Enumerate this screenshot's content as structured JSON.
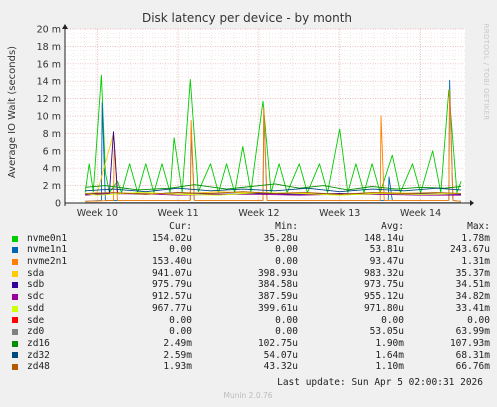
{
  "chart_data": {
    "type": "line",
    "title": "Disk latency per device - by month",
    "ylabel": "Average IO Wait (seconds)",
    "ylim": [
      0,
      0.02
    ],
    "yticks": [
      {
        "value": 0,
        "label": "0"
      },
      {
        "value": 0.002,
        "label": "2 m"
      },
      {
        "value": 0.004,
        "label": "4 m"
      },
      {
        "value": 0.006,
        "label": "6 m"
      },
      {
        "value": 0.008,
        "label": "8 m"
      },
      {
        "value": 0.01,
        "label": "10 m"
      },
      {
        "value": 0.012,
        "label": "12 m"
      },
      {
        "value": 0.014,
        "label": "14 m"
      },
      {
        "value": 0.016,
        "label": "16 m"
      },
      {
        "value": 0.018,
        "label": "18 m"
      },
      {
        "value": 0.02,
        "label": "20 m"
      }
    ],
    "xlim": [
      9.6,
      14.55
    ],
    "xticks": [
      {
        "value": 10,
        "label": "Week 10"
      },
      {
        "value": 11,
        "label": "Week 11"
      },
      {
        "value": 12,
        "label": "Week 12"
      },
      {
        "value": 13,
        "label": "Week 13"
      },
      {
        "value": 14,
        "label": "Week 14"
      }
    ],
    "grid": true,
    "series": [
      {
        "name": "nvme0n1",
        "color": "#00cc00",
        "points": [
          [
            9.85,
            0.0012
          ],
          [
            9.9,
            0.0045
          ],
          [
            9.95,
            0.0013
          ],
          [
            10.05,
            0.0147
          ],
          [
            10.1,
            0.0035
          ],
          [
            10.15,
            0.0012
          ],
          [
            10.25,
            0.0025
          ],
          [
            10.3,
            0.0012
          ],
          [
            10.4,
            0.0045
          ],
          [
            10.5,
            0.0012
          ],
          [
            10.6,
            0.0045
          ],
          [
            10.7,
            0.0012
          ],
          [
            10.8,
            0.0045
          ],
          [
            10.9,
            0.0012
          ],
          [
            10.95,
            0.0075
          ],
          [
            11.05,
            0.0012
          ],
          [
            11.15,
            0.0142
          ],
          [
            11.25,
            0.0013
          ],
          [
            11.4,
            0.0045
          ],
          [
            11.5,
            0.0012
          ],
          [
            11.6,
            0.0045
          ],
          [
            11.7,
            0.0012
          ],
          [
            11.8,
            0.0065
          ],
          [
            11.9,
            0.0013
          ],
          [
            12.05,
            0.0117
          ],
          [
            12.15,
            0.0012
          ],
          [
            12.25,
            0.0045
          ],
          [
            12.35,
            0.0012
          ],
          [
            12.5,
            0.0045
          ],
          [
            12.6,
            0.0012
          ],
          [
            12.75,
            0.0045
          ],
          [
            12.85,
            0.0012
          ],
          [
            13.0,
            0.0085
          ],
          [
            13.1,
            0.0012
          ],
          [
            13.2,
            0.0045
          ],
          [
            13.3,
            0.0012
          ],
          [
            13.4,
            0.0045
          ],
          [
            13.5,
            0.0012
          ],
          [
            13.65,
            0.0055
          ],
          [
            13.75,
            0.0012
          ],
          [
            13.9,
            0.0045
          ],
          [
            14.0,
            0.0012
          ],
          [
            14.15,
            0.006
          ],
          [
            14.25,
            0.0012
          ],
          [
            14.35,
            0.013
          ],
          [
            14.45,
            0.0012
          ],
          [
            14.5,
            0.0025
          ]
        ]
      },
      {
        "name": "nvme1n1",
        "color": "#0066b3",
        "points": [
          [
            9.85,
            0.0002
          ],
          [
            10.05,
            0.0003
          ],
          [
            10.06,
            0.0115
          ],
          [
            10.1,
            0.0003
          ],
          [
            11.15,
            0.0003
          ],
          [
            11.16,
            0.0085
          ],
          [
            11.2,
            0.0003
          ],
          [
            12.05,
            0.0003
          ],
          [
            12.06,
            0.0105
          ],
          [
            12.1,
            0.0003
          ],
          [
            13.6,
            0.0003
          ],
          [
            13.61,
            0.003
          ],
          [
            13.65,
            0.0003
          ],
          [
            14.35,
            0.0003
          ],
          [
            14.36,
            0.0141
          ],
          [
            14.4,
            0.0003
          ],
          [
            14.5,
            0.0002
          ]
        ]
      },
      {
        "name": "nvme2n1",
        "color": "#ff8000",
        "points": [
          [
            9.85,
            0.0002
          ],
          [
            10.2,
            0.0003
          ],
          [
            10.21,
            0.007
          ],
          [
            10.25,
            0.0003
          ],
          [
            11.15,
            0.0003
          ],
          [
            11.16,
            0.0095
          ],
          [
            11.2,
            0.0003
          ],
          [
            12.05,
            0.0003
          ],
          [
            12.06,
            0.011
          ],
          [
            12.1,
            0.0003
          ],
          [
            13.5,
            0.0003
          ],
          [
            13.51,
            0.01
          ],
          [
            13.55,
            0.0003
          ],
          [
            14.35,
            0.0003
          ],
          [
            14.36,
            0.013
          ],
          [
            14.4,
            0.0003
          ],
          [
            14.5,
            0.0002
          ]
        ]
      },
      {
        "name": "sda",
        "color": "#ffcc00",
        "points": [
          [
            9.85,
            0.001
          ],
          [
            10.0,
            0.0012
          ],
          [
            10.2,
            0.008
          ],
          [
            10.25,
            0.0011
          ],
          [
            10.6,
            0.0012
          ],
          [
            11.0,
            0.001
          ],
          [
            11.5,
            0.0013
          ],
          [
            12.0,
            0.0011
          ],
          [
            12.5,
            0.0012
          ],
          [
            13.0,
            0.0009
          ],
          [
            13.5,
            0.0012
          ],
          [
            14.0,
            0.0011
          ],
          [
            14.5,
            0.001
          ]
        ]
      },
      {
        "name": "sdb",
        "color": "#330099",
        "points": [
          [
            9.85,
            0.001
          ],
          [
            10.15,
            0.0011
          ],
          [
            10.2,
            0.0082
          ],
          [
            10.25,
            0.0011
          ],
          [
            10.6,
            0.001
          ],
          [
            11.0,
            0.0012
          ],
          [
            11.5,
            0.001
          ],
          [
            12.0,
            0.0011
          ],
          [
            12.5,
            0.001
          ],
          [
            13.0,
            0.0011
          ],
          [
            13.5,
            0.001
          ],
          [
            14.0,
            0.0011
          ],
          [
            14.5,
            0.001
          ]
        ]
      },
      {
        "name": "sdc",
        "color": "#990099",
        "points": [
          [
            9.85,
            0.0009
          ],
          [
            10.0,
            0.001
          ],
          [
            10.5,
            0.0011
          ],
          [
            11.0,
            0.0009
          ],
          [
            11.5,
            0.001
          ],
          [
            12.0,
            0.001
          ],
          [
            12.5,
            0.0009
          ],
          [
            13.0,
            0.001
          ],
          [
            13.5,
            0.001
          ],
          [
            14.0,
            0.0009
          ],
          [
            14.5,
            0.0009
          ]
        ]
      },
      {
        "name": "sdd",
        "color": "#ccff00",
        "points": [
          [
            9.85,
            0.0011
          ],
          [
            10.0,
            0.0009
          ],
          [
            10.5,
            0.0012
          ],
          [
            11.0,
            0.001
          ],
          [
            11.5,
            0.0009
          ],
          [
            12.0,
            0.0012
          ],
          [
            12.5,
            0.0011
          ],
          [
            13.0,
            0.0009
          ],
          [
            13.5,
            0.0011
          ],
          [
            14.0,
            0.001
          ],
          [
            14.5,
            0.0011
          ]
        ]
      },
      {
        "name": "sde",
        "color": "#ff0000",
        "points": [
          [
            9.85,
            0
          ],
          [
            14.5,
            0
          ]
        ]
      },
      {
        "name": "zd0",
        "color": "#808080",
        "points": [
          [
            9.85,
            5e-05
          ],
          [
            12.0,
            6e-05
          ],
          [
            14.5,
            5e-05
          ]
        ]
      },
      {
        "name": "zd16",
        "color": "#008f00",
        "points": [
          [
            9.85,
            0.0018
          ],
          [
            10.1,
            0.002
          ],
          [
            10.5,
            0.0015
          ],
          [
            10.9,
            0.0017
          ],
          [
            11.2,
            0.0021
          ],
          [
            11.6,
            0.0016
          ],
          [
            11.9,
            0.0019
          ],
          [
            12.2,
            0.0022
          ],
          [
            12.5,
            0.0017
          ],
          [
            12.8,
            0.002
          ],
          [
            13.1,
            0.0015
          ],
          [
            13.4,
            0.0019
          ],
          [
            13.7,
            0.0016
          ],
          [
            14.0,
            0.0018
          ],
          [
            14.3,
            0.0017
          ],
          [
            14.5,
            0.0019
          ]
        ]
      },
      {
        "name": "zd32",
        "color": "#00487d",
        "points": [
          [
            9.85,
            0.0014
          ],
          [
            10.2,
            0.0016
          ],
          [
            10.6,
            0.0013
          ],
          [
            11.0,
            0.0017
          ],
          [
            11.4,
            0.0014
          ],
          [
            11.8,
            0.0016
          ],
          [
            12.2,
            0.0014
          ],
          [
            12.6,
            0.0017
          ],
          [
            13.0,
            0.0013
          ],
          [
            13.4,
            0.0016
          ],
          [
            13.8,
            0.0014
          ],
          [
            14.2,
            0.0017
          ],
          [
            14.5,
            0.0015
          ]
        ]
      },
      {
        "name": "zd48",
        "color": "#b35a00",
        "points": [
          [
            9.85,
            0.0011
          ],
          [
            10.2,
            0.0012
          ],
          [
            10.6,
            0.001
          ],
          [
            11.0,
            0.0012
          ],
          [
            11.4,
            0.0011
          ],
          [
            11.8,
            0.0013
          ],
          [
            12.2,
            0.0011
          ],
          [
            12.6,
            0.0012
          ],
          [
            13.0,
            0.001
          ],
          [
            13.4,
            0.0012
          ],
          [
            13.8,
            0.0011
          ],
          [
            14.2,
            0.0012
          ],
          [
            14.5,
            0.0011
          ]
        ]
      }
    ]
  },
  "side_text": "RRDTOOL / TOBI OETIKER",
  "legend": {
    "headers": {
      "cur": "Cur:",
      "min": "Min:",
      "avg": "Avg:",
      "max": "Max:"
    },
    "rows": [
      {
        "name": "nvme0n1",
        "color": "#00cc00",
        "cur": "154.02u",
        "min": "35.28u",
        "avg": "148.14u",
        "max": "1.78m"
      },
      {
        "name": "nvme1n1",
        "color": "#0066b3",
        "cur": "0.00",
        "min": "0.00",
        "avg": "53.81u",
        "max": "243.67u"
      },
      {
        "name": "nvme2n1",
        "color": "#ff8000",
        "cur": "153.40u",
        "min": "0.00",
        "avg": "93.47u",
        "max": "1.31m"
      },
      {
        "name": "sda",
        "color": "#ffcc00",
        "cur": "941.07u",
        "min": "398.93u",
        "avg": "983.32u",
        "max": "35.37m"
      },
      {
        "name": "sdb",
        "color": "#330099",
        "cur": "975.79u",
        "min": "384.58u",
        "avg": "973.75u",
        "max": "34.51m"
      },
      {
        "name": "sdc",
        "color": "#990099",
        "cur": "912.57u",
        "min": "387.59u",
        "avg": "955.12u",
        "max": "34.82m"
      },
      {
        "name": "sdd",
        "color": "#ccff00",
        "cur": "967.77u",
        "min": "399.61u",
        "avg": "971.80u",
        "max": "33.41m"
      },
      {
        "name": "sde",
        "color": "#ff0000",
        "cur": "0.00",
        "min": "0.00",
        "avg": "0.00",
        "max": "0.00"
      },
      {
        "name": "zd0",
        "color": "#808080",
        "cur": "0.00",
        "min": "0.00",
        "avg": "53.05u",
        "max": "63.99m"
      },
      {
        "name": "zd16",
        "color": "#008f00",
        "cur": "2.49m",
        "min": "102.75u",
        "avg": "1.90m",
        "max": "107.93m"
      },
      {
        "name": "zd32",
        "color": "#00487d",
        "cur": "2.59m",
        "min": "54.07u",
        "avg": "1.64m",
        "max": "68.31m"
      },
      {
        "name": "zd48",
        "color": "#b35a00",
        "cur": "1.93m",
        "min": "43.32u",
        "avg": "1.10m",
        "max": "66.76m"
      }
    ]
  },
  "last_update": "Last update: Sun Apr  5 02:00:31 2026",
  "footer": "Munin 2.0.76"
}
